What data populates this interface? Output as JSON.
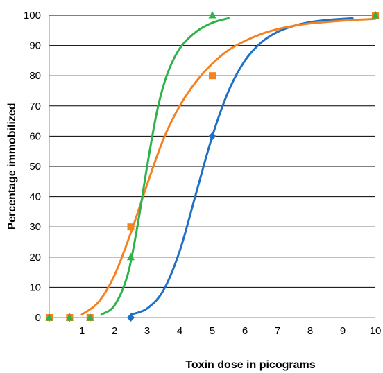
{
  "chart_data": {
    "type": "scatter",
    "title": "",
    "xlabel": "Toxin dose in picograms",
    "ylabel": "Percentage immobilized",
    "xlim": [
      0,
      10
    ],
    "ylim": [
      0,
      100
    ],
    "x_ticks": [
      1,
      2,
      3,
      4,
      5,
      6,
      7,
      8,
      9,
      10
    ],
    "y_ticks": [
      0,
      10,
      20,
      30,
      40,
      50,
      60,
      70,
      80,
      90,
      100
    ],
    "grid": "horizontal",
    "legend": "none",
    "series": [
      {
        "color": "#1f6fc5",
        "marker": "diamond",
        "points": [
          [
            0,
            0
          ],
          [
            0.625,
            0
          ],
          [
            1.25,
            0
          ],
          [
            2.5,
            0
          ],
          [
            5,
            60
          ],
          [
            10,
            100
          ]
        ],
        "curve": [
          [
            2.5,
            1
          ],
          [
            3.0,
            3
          ],
          [
            3.5,
            9
          ],
          [
            4.0,
            22
          ],
          [
            4.5,
            41
          ],
          [
            5.0,
            60
          ],
          [
            5.5,
            75
          ],
          [
            6.0,
            85
          ],
          [
            6.5,
            91
          ],
          [
            7.0,
            94.5
          ],
          [
            7.5,
            96.5
          ],
          [
            8.0,
            97.7
          ],
          [
            8.5,
            98.4
          ],
          [
            9.0,
            98.8
          ],
          [
            9.3,
            99
          ]
        ]
      },
      {
        "color": "#f58220",
        "marker": "square",
        "points": [
          [
            0,
            0
          ],
          [
            0.625,
            0
          ],
          [
            1.25,
            0
          ],
          [
            2.5,
            30
          ],
          [
            5,
            80
          ],
          [
            10,
            100
          ]
        ],
        "curve": [
          [
            1.0,
            1
          ],
          [
            1.5,
            5
          ],
          [
            2.0,
            14
          ],
          [
            2.5,
            28
          ],
          [
            3.0,
            44
          ],
          [
            3.5,
            59
          ],
          [
            4.0,
            70
          ],
          [
            4.5,
            78
          ],
          [
            5.0,
            84
          ],
          [
            5.5,
            88.5
          ],
          [
            6.0,
            91.5
          ],
          [
            6.5,
            93.8
          ],
          [
            7.0,
            95.4
          ],
          [
            7.5,
            96.5
          ],
          [
            8.0,
            97.3
          ],
          [
            9.0,
            98.2
          ],
          [
            10.0,
            98.8
          ]
        ]
      },
      {
        "color": "#2db34a",
        "marker": "triangle",
        "points": [
          [
            0,
            0
          ],
          [
            0.625,
            0
          ],
          [
            1.25,
            0
          ],
          [
            2.5,
            20
          ],
          [
            5,
            100
          ],
          [
            10,
            100
          ]
        ],
        "curve": [
          [
            1.6,
            1
          ],
          [
            2.0,
            4
          ],
          [
            2.4,
            14
          ],
          [
            2.7,
            30
          ],
          [
            3.0,
            50
          ],
          [
            3.3,
            68
          ],
          [
            3.6,
            80
          ],
          [
            4.0,
            89
          ],
          [
            4.5,
            94.5
          ],
          [
            5.0,
            97.5
          ],
          [
            5.5,
            99
          ]
        ]
      }
    ]
  }
}
